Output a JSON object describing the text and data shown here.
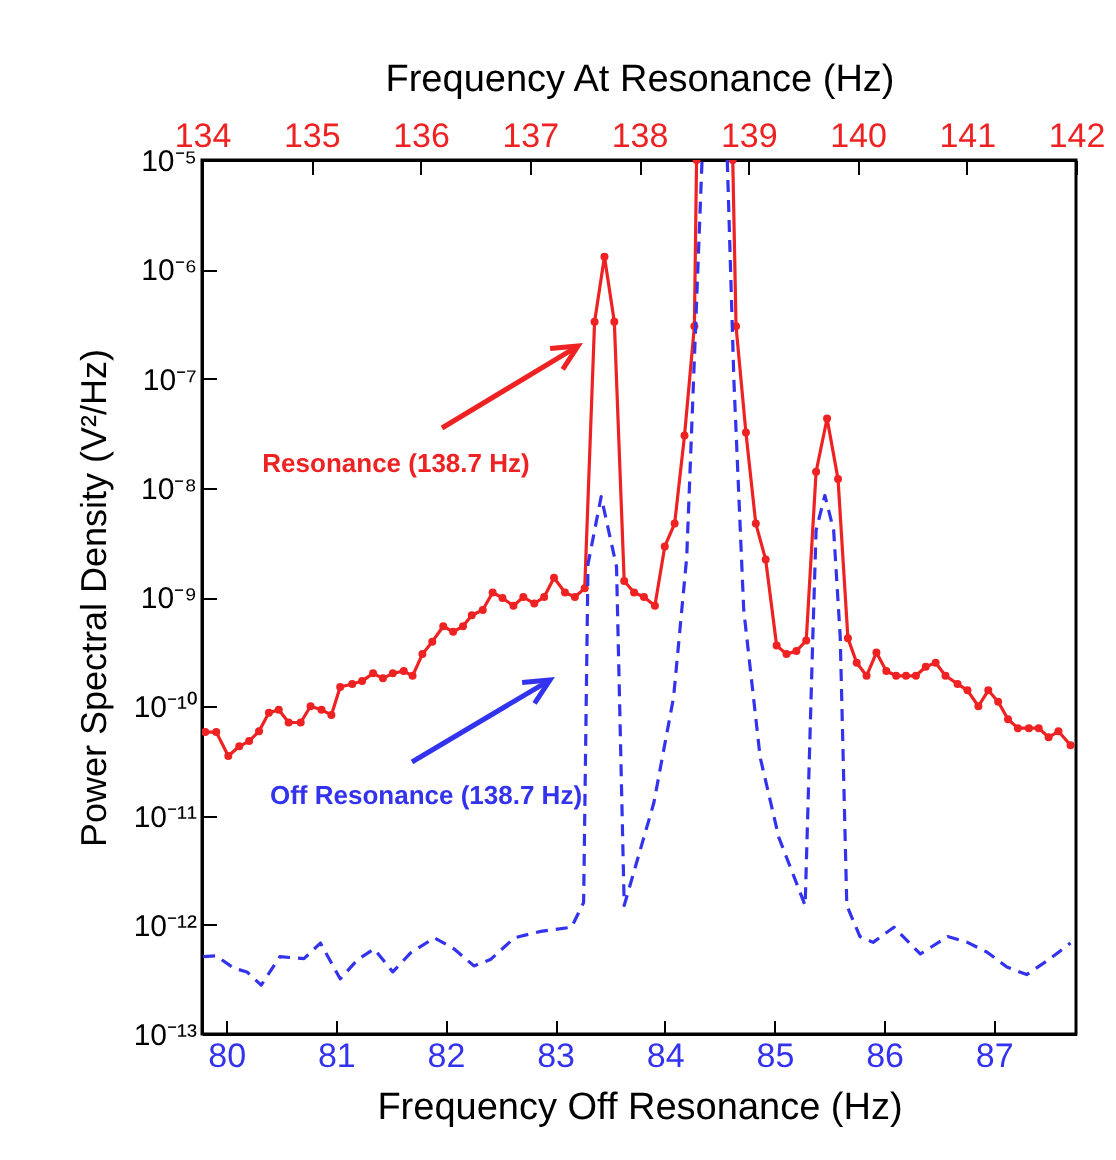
{
  "chart_data": {
    "type": "line",
    "xlabel": "Frequency Off Resonance (Hz)",
    "x2label": "Frequency At Resonance (Hz)",
    "ylabel": "Power Spectral Density (V²/Hz)",
    "log": "y",
    "xlim": [
      79.78,
      87.75
    ],
    "xticks": [
      80,
      81,
      82,
      83,
      84,
      85,
      86,
      87
    ],
    "x2lim": [
      134,
      142
    ],
    "x2ticks": [
      134,
      135,
      136,
      137,
      138,
      139,
      140,
      141,
      142
    ],
    "ylim": [
      1e-13,
      1e-05
    ],
    "yticks": [
      {
        "value": 1e-13,
        "label": "10⁻¹³"
      },
      {
        "value": 1e-12,
        "label": "10⁻¹²"
      },
      {
        "value": 1e-11,
        "label": "10⁻¹¹"
      },
      {
        "value": 1e-10,
        "label": "10⁻¹⁰"
      },
      {
        "value": 1e-09,
        "label": "10⁻⁹"
      },
      {
        "value": 1e-08,
        "label": "10⁻⁸"
      },
      {
        "value": 1e-07,
        "label": "10⁻⁷"
      },
      {
        "value": 1e-06,
        "label": "10⁻⁶"
      },
      {
        "value": 1e-05,
        "label": "10⁻⁵"
      }
    ],
    "series": [
      {
        "name": "Resonance (138.7 Hz)",
        "color": "#ee2222",
        "marker": "circle",
        "line_style": "solid",
        "x": [
          79.81,
          79.91,
          80.02,
          80.12,
          80.21,
          80.3,
          80.39,
          80.48,
          80.57,
          80.68,
          80.77,
          80.87,
          80.96,
          81.04,
          81.15,
          81.24,
          81.34,
          81.43,
          81.52,
          81.62,
          81.7,
          81.79,
          81.88,
          81.98,
          82.07,
          82.16,
          82.24,
          82.34,
          82.43,
          82.52,
          82.62,
          82.71,
          82.81,
          82.9,
          82.99,
          83.09,
          83.18,
          83.27,
          83.36,
          83.45,
          83.54,
          83.63,
          83.72,
          83.81,
          83.91,
          84.0,
          84.09,
          84.18,
          84.27,
          84.29,
          84.45,
          84.62,
          84.65,
          84.74,
          84.83,
          84.92,
          85.02,
          85.11,
          85.2,
          85.29,
          85.38,
          85.48,
          85.58,
          85.67,
          85.75,
          85.84,
          85.93,
          86.02,
          86.11,
          86.2,
          86.29,
          86.38,
          86.47,
          86.56,
          86.67,
          86.76,
          86.86,
          86.95,
          87.04,
          87.13,
          87.22,
          87.32,
          87.41,
          87.5,
          87.59,
          87.7
        ],
        "values": [
          5.8e-11,
          5.8e-11,
          3.5e-11,
          4.3e-11,
          4.8e-11,
          5.9e-11,
          8.7e-11,
          9.3e-11,
          7.1e-11,
          7.1e-11,
          1e-10,
          9.3e-11,
          8.3e-11,
          1.5e-10,
          1.6e-10,
          1.7e-10,
          2e-10,
          1.8e-10,
          2e-10,
          2.1e-10,
          1.9e-10,
          3e-10,
          3.9e-10,
          5.4e-10,
          4.8e-10,
          5.4e-10,
          6.8e-10,
          7.6e-10,
          1.1e-09,
          9.8e-10,
          8.3e-10,
          1e-09,
          8.7e-10,
          1e-09,
          1.5e-09,
          1.1e-09,
          1e-09,
          1.2e-09,
          3.3e-07,
          1.3e-06,
          3.3e-07,
          1.4e-09,
          1.1e-09,
          1e-09,
          8.3e-10,
          2.9e-09,
          4.7e-09,
          3e-08,
          3e-07,
          1e-05,
          null,
          1e-05,
          3e-07,
          3.2e-08,
          4.7e-09,
          2.2e-09,
          3.6e-10,
          3e-10,
          3.2e-10,
          4e-10,
          1.4e-08,
          4.3e-08,
          1.2e-08,
          4.2e-10,
          2.5e-10,
          1.9e-10,
          3.1e-10,
          2.1e-10,
          1.9e-10,
          1.9e-10,
          1.9e-10,
          2.3e-10,
          2.5e-10,
          1.9e-10,
          1.6e-10,
          1.4e-10,
          1e-10,
          1.4e-10,
          1.1e-10,
          7.6e-11,
          6.3e-11,
          6.3e-11,
          6.3e-11,
          5.2e-11,
          5.9e-11,
          4.4e-11
        ]
      },
      {
        "name": "Off Resonance (138.7 Hz)",
        "color": "#3333ee",
        "marker": "none",
        "line_style": "dashed",
        "x": [
          79.79,
          79.91,
          80.07,
          80.19,
          80.32,
          80.49,
          80.71,
          80.86,
          81.04,
          81.2,
          81.35,
          81.52,
          81.68,
          81.9,
          82.08,
          82.26,
          82.41,
          82.63,
          82.87,
          83.15,
          83.26,
          83.3,
          83.42,
          83.56,
          83.63,
          83.9,
          84.08,
          84.2,
          84.34,
          84.45,
          84.57,
          84.63,
          84.72,
          84.87,
          85.04,
          85.28,
          85.35,
          85.38,
          85.46,
          85.54,
          85.6,
          85.66,
          85.78,
          85.9,
          86.09,
          86.33,
          86.58,
          86.76,
          86.94,
          87.12,
          87.3,
          87.49,
          87.7
        ],
        "values": [
          5.1e-13,
          5.2e-13,
          4e-13,
          3.7e-13,
          2.8e-13,
          5.1e-13,
          4.9e-13,
          6.8e-13,
          3.2e-13,
          4.8e-13,
          6e-13,
          3.7e-13,
          5.5e-13,
          7.6e-13,
          6e-13,
          4.2e-13,
          4.8e-13,
          7.6e-13,
          8.7e-13,
          9.5e-13,
          1.6e-12,
          2e-09,
          8.3e-09,
          1.9e-09,
          1.5e-12,
          1.3e-11,
          1.2e-10,
          2.3e-09,
          1e-05,
          null,
          1e-05,
          9.8e-08,
          7.6e-10,
          3.4e-11,
          6.3e-12,
          1.5e-12,
          4.3e-10,
          4.1e-09,
          8.5e-09,
          4.1e-09,
          4.3e-10,
          1.5e-12,
          7.8e-13,
          6.9e-13,
          9.5e-13,
          5.4e-13,
          7.8e-13,
          6.9e-13,
          5.6e-13,
          4.1e-13,
          3.5e-13,
          4.7e-13,
          6.8e-13
        ]
      }
    ]
  }
}
